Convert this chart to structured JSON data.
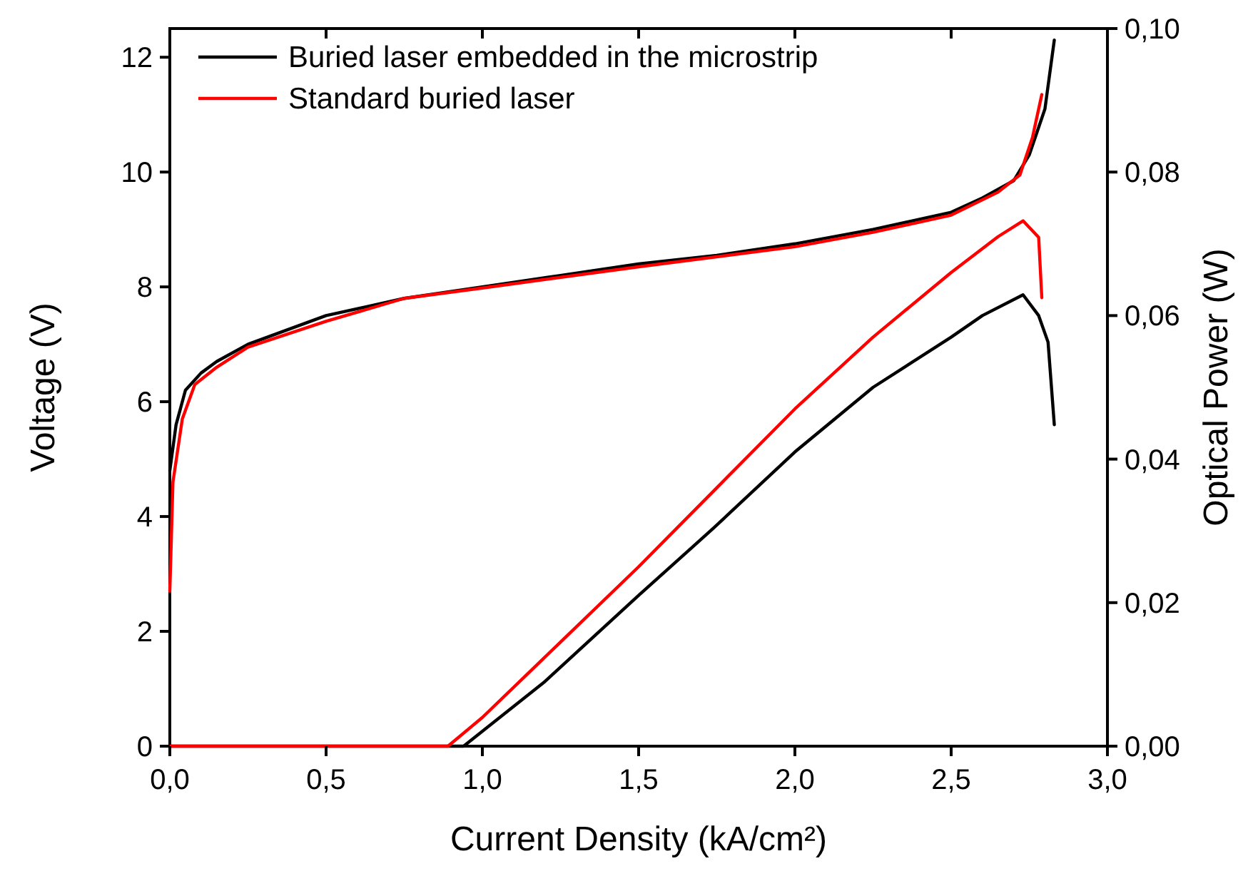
{
  "chart_data": {
    "type": "line",
    "xlabel": "Current Density (kA/cm²)",
    "ylabel": "Voltage (V)",
    "y2label": "Optical Power (W)",
    "xlim": [
      0,
      3
    ],
    "xticks": [
      {
        "value": 0,
        "label": "0,0"
      },
      {
        "value": 0.5,
        "label": "0,5"
      },
      {
        "value": 1,
        "label": "1,0"
      },
      {
        "value": 1.5,
        "label": "1,5"
      },
      {
        "value": 2,
        "label": "2,0"
      },
      {
        "value": 2.5,
        "label": "2,5"
      },
      {
        "value": 3,
        "label": "3,0"
      }
    ],
    "ylim": [
      0,
      12.5
    ],
    "yticks": [
      0,
      2,
      4,
      6,
      8,
      10,
      12
    ],
    "y2lim": [
      0,
      0.1
    ],
    "y2ticks": [
      {
        "value": 0,
        "label": "0,00"
      },
      {
        "value": 0.02,
        "label": "0,02"
      },
      {
        "value": 0.04,
        "label": "0,04"
      },
      {
        "value": 0.06,
        "label": "0,06"
      },
      {
        "value": 0.08,
        "label": "0,08"
      },
      {
        "value": 0.1,
        "label": "0,10"
      }
    ],
    "grid": false,
    "legend": "top left",
    "line_style": "solid",
    "series": [
      {
        "name": "Buried laser embedded in the microstrip",
        "color": "#000000",
        "x": [
          0,
          0.02,
          0.05,
          0.1,
          0.15,
          0.25,
          0.5,
          0.75,
          1.0,
          1.25,
          1.5,
          1.75,
          2.0,
          2.25,
          2.5,
          2.6,
          2.7,
          2.75,
          2.8,
          2.83
        ],
        "values": [
          4.8,
          5.6,
          6.2,
          6.5,
          6.7,
          7.0,
          7.5,
          7.8,
          8.0,
          8.2,
          8.4,
          8.55,
          8.75,
          9.0,
          9.3,
          9.55,
          9.85,
          10.3,
          11.1,
          12.3
        ]
      },
      {
        "name": "Standard buried laser",
        "color": "#ff0000",
        "x": [
          0,
          0.01,
          0.04,
          0.08,
          0.15,
          0.25,
          0.5,
          0.75,
          1.0,
          1.5,
          2.0,
          2.25,
          2.5,
          2.65,
          2.72,
          2.76,
          2.79
        ],
        "values": [
          2.7,
          4.6,
          5.7,
          6.3,
          6.6,
          6.95,
          7.4,
          7.8,
          7.98,
          8.35,
          8.7,
          8.95,
          9.25,
          9.65,
          9.95,
          10.6,
          11.35
        ]
      },
      {
        "color": "#000000",
        "axis": "y2",
        "x": [
          0,
          0.94,
          1.2,
          1.5,
          1.74,
          2.0,
          2.25,
          2.5,
          2.6,
          2.73,
          2.78,
          2.81,
          2.83
        ],
        "values": [
          0,
          0,
          0.009,
          0.021,
          0.0304,
          0.041,
          0.05,
          0.057,
          0.06,
          0.0629,
          0.06,
          0.0563,
          0.0448
        ]
      },
      {
        "color": "#ff0000",
        "axis": "y2",
        "x": [
          0,
          0.89,
          1.0,
          1.25,
          1.5,
          1.75,
          2.0,
          2.25,
          2.5,
          2.65,
          2.73,
          2.78,
          2.79
        ],
        "values": [
          0,
          0,
          0.004,
          0.0145,
          0.025,
          0.036,
          0.047,
          0.057,
          0.066,
          0.071,
          0.0732,
          0.0709,
          0.0625
        ]
      }
    ]
  }
}
